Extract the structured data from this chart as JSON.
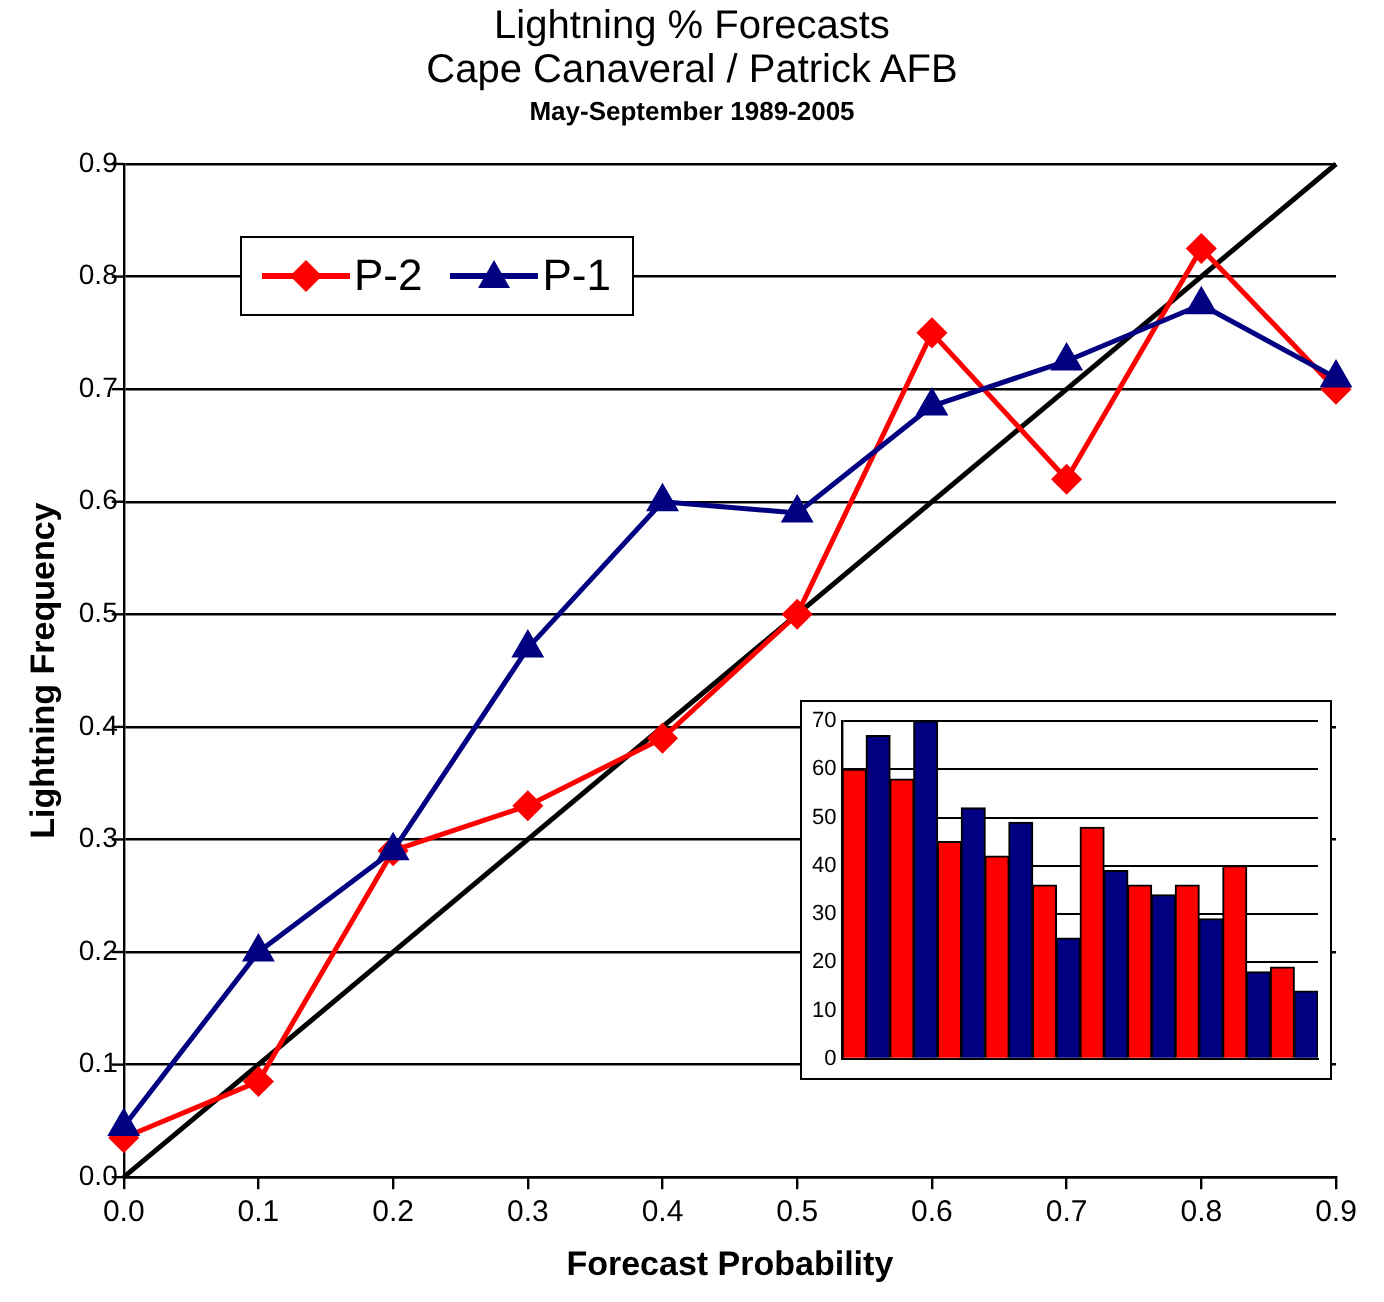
{
  "chart_data": [
    {
      "type": "line",
      "title": "Lightning % Forecasts",
      "subtitle": "Cape Canaveral / Patrick AFB",
      "annotations": [
        "May-September 1989-2005"
      ],
      "xlabel": "Forecast Probability",
      "ylabel": "Lightning Frequency",
      "x": [
        0,
        0.1,
        0.2,
        0.3,
        0.4,
        0.5,
        0.6,
        0.7,
        0.8,
        0.9
      ],
      "series": [
        {
          "name": "P-2",
          "color": "#ff0000",
          "marker": "diamond",
          "values": [
            0.035,
            0.085,
            0.29,
            0.33,
            0.39,
            0.5,
            0.75,
            0.62,
            0.825,
            0.7
          ]
        },
        {
          "name": "P-1",
          "color": "#000080",
          "marker": "triangle",
          "values": [
            0.045,
            0.2,
            0.29,
            0.47,
            0.6,
            0.59,
            0.685,
            0.725,
            0.775,
            0.71
          ]
        },
        {
          "color": "#000000",
          "marker": "none",
          "x": [
            0,
            0.9
          ],
          "values": [
            0,
            0.9
          ]
        }
      ],
      "xlim": [
        0,
        0.9
      ],
      "xticks": [
        {
          "value": 0,
          "label": "0.0"
        },
        {
          "value": 0.1,
          "label": "0.1"
        },
        {
          "value": 0.2,
          "label": "0.2"
        },
        {
          "value": 0.3,
          "label": "0.3"
        },
        {
          "value": 0.4,
          "label": "0.4"
        },
        {
          "value": 0.5,
          "label": "0.5"
        },
        {
          "value": 0.6,
          "label": "0.6"
        },
        {
          "value": 0.7,
          "label": "0.7"
        },
        {
          "value": 0.8,
          "label": "0.8"
        },
        {
          "value": 0.9,
          "label": "0.9"
        }
      ],
      "ylim": [
        0,
        0.9
      ],
      "yticks": [
        {
          "value": 0,
          "label": "0.0"
        },
        {
          "value": 0.1,
          "label": "0.1"
        },
        {
          "value": 0.2,
          "label": "0.2"
        },
        {
          "value": 0.3,
          "label": "0.3"
        },
        {
          "value": 0.4,
          "label": "0.4"
        },
        {
          "value": 0.5,
          "label": "0.5"
        },
        {
          "value": 0.6,
          "label": "0.6"
        },
        {
          "value": 0.7,
          "label": "0.7"
        },
        {
          "value": 0.8,
          "label": "0.8"
        },
        {
          "value": 0.9,
          "label": "0.9"
        }
      ],
      "grid": "y",
      "legend": "top left"
    },
    {
      "type": "bar",
      "categories": [
        null,
        null,
        null,
        null,
        null,
        null,
        null,
        null,
        null,
        null
      ],
      "series": [
        {
          "color": "#ff0000",
          "values": [
            60,
            58,
            45,
            42,
            36,
            48,
            36,
            36,
            40,
            19
          ]
        },
        {
          "color": "#000080",
          "values": [
            67,
            70,
            52,
            49,
            25,
            39,
            34,
            29,
            18,
            14
          ]
        }
      ],
      "ylim": [
        0,
        70
      ],
      "yticks": [
        0,
        10,
        20,
        30,
        40,
        50,
        60,
        70
      ],
      "grid": "y",
      "tick_labels": "y"
    }
  ]
}
